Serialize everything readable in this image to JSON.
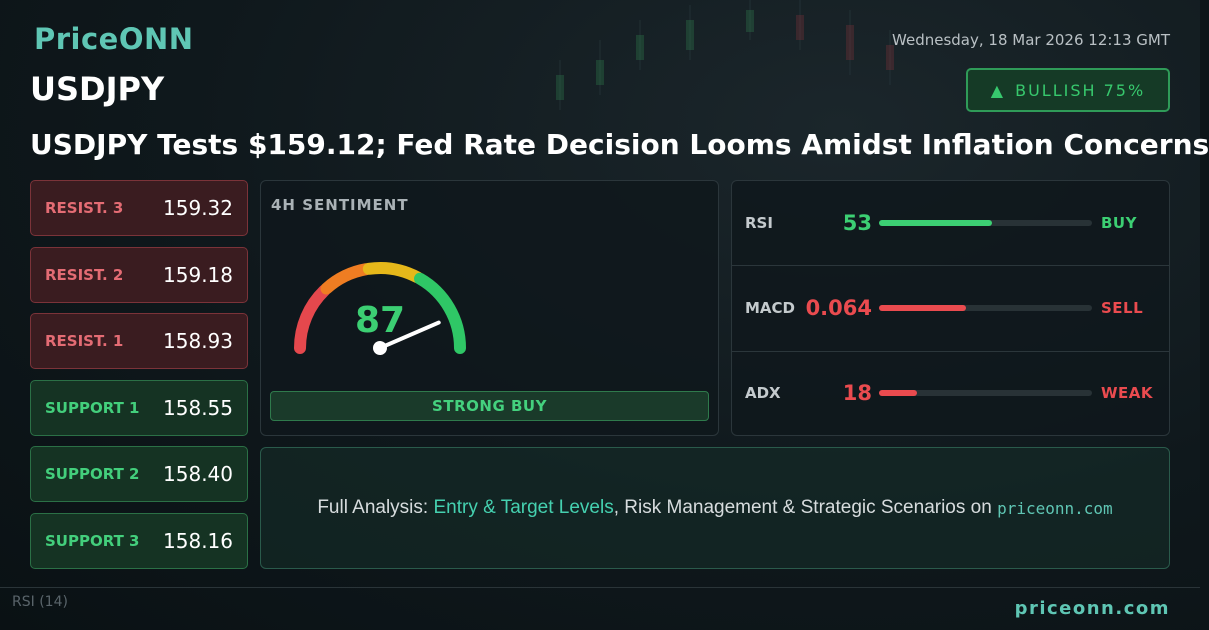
{
  "brand": "PriceONN",
  "datetime": "Wednesday, 18 Mar 2026 12:13 GMT",
  "symbol": "USDJPY",
  "badge": "BULLISH 75%",
  "headline": "USDJPY Tests $159.12; Fed Rate Decision Looms Amidst Inflation Concerns",
  "levels": [
    {
      "label": "RESIST. 3",
      "value": "159.32",
      "kind": "resistance"
    },
    {
      "label": "RESIST. 2",
      "value": "159.18",
      "kind": "resistance"
    },
    {
      "label": "RESIST. 1",
      "value": "158.93",
      "kind": "resistance"
    },
    {
      "label": "SUPPORT 1",
      "value": "158.55",
      "kind": "support"
    },
    {
      "label": "SUPPORT 2",
      "value": "158.40",
      "kind": "support"
    },
    {
      "label": "SUPPORT 3",
      "value": "158.16",
      "kind": "support"
    }
  ],
  "sentiment": {
    "title": "4H SENTIMENT",
    "value": 87,
    "label": "STRONG BUY"
  },
  "indicators": [
    {
      "name": "RSI",
      "value": 53,
      "signal": "BUY",
      "tone": "up"
    },
    {
      "name": "MACD",
      "value": 0.064,
      "signal": "SELL",
      "tone": "down"
    },
    {
      "name": "ADX",
      "value": 18,
      "signal": "WEAK",
      "tone": "down"
    }
  ],
  "cta": {
    "lead": "Full Analysis: ",
    "highlight": "Entry & Target Levels",
    "rest": ", Risk Management & Strategic Scenarios on ",
    "site": "priceonn.com"
  },
  "footer": "priceonn.com",
  "background_label": {
    "name": "RSI",
    "period": "(14)"
  }
}
